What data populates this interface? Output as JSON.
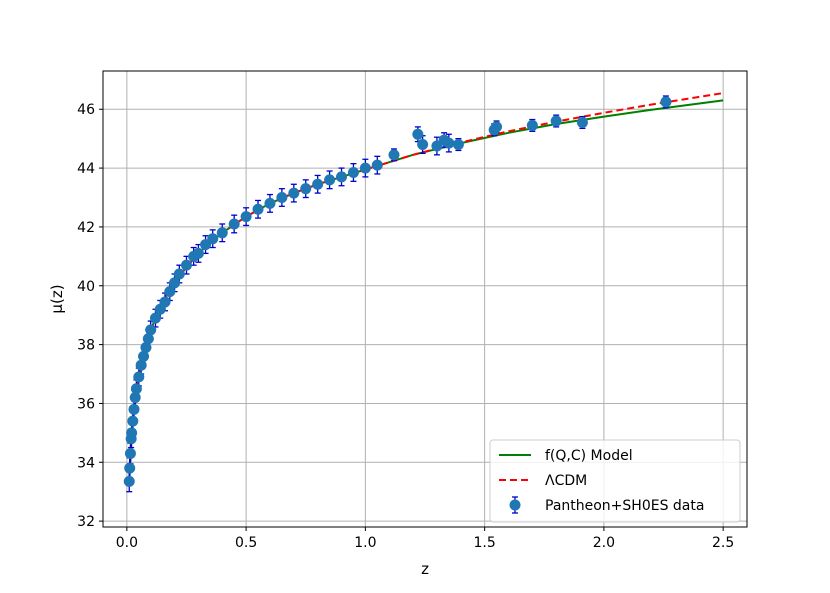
{
  "chart_data": {
    "type": "scatter",
    "title": "",
    "xlabel": "z",
    "ylabel": "μ(z)",
    "xlim": [
      -0.1,
      2.6
    ],
    "ylim": [
      31.8,
      47.3
    ],
    "x_ticks": [
      "0.0",
      "0.5",
      "1.0",
      "1.5",
      "2.0",
      "2.5"
    ],
    "y_ticks": [
      "32",
      "34",
      "36",
      "38",
      "40",
      "42",
      "44",
      "46"
    ],
    "grid": true,
    "legend_position": "lower right",
    "colors": {
      "model": "#008000",
      "lcdm": "#ff0000",
      "data_marker": "#1f77b4",
      "error_bar": "#0000cd"
    },
    "series": [
      {
        "name": "f(Q,C) Model",
        "style": "solid-line",
        "x": [
          0.01,
          0.02,
          0.03,
          0.05,
          0.07,
          0.1,
          0.15,
          0.2,
          0.3,
          0.4,
          0.5,
          0.6,
          0.7,
          0.8,
          0.9,
          1.0,
          1.2,
          1.4,
          1.6,
          1.8,
          2.0,
          2.2,
          2.5
        ],
        "y": [
          33.3,
          34.85,
          35.8,
          36.9,
          37.65,
          38.5,
          39.45,
          40.15,
          41.1,
          41.8,
          42.35,
          42.8,
          43.15,
          43.45,
          43.7,
          43.95,
          44.45,
          44.85,
          45.2,
          45.5,
          45.75,
          45.98,
          46.3
        ]
      },
      {
        "name": "ΛCDM",
        "style": "dashed-line",
        "x": [
          0.01,
          0.02,
          0.03,
          0.05,
          0.07,
          0.1,
          0.15,
          0.2,
          0.3,
          0.4,
          0.5,
          0.6,
          0.7,
          0.8,
          0.9,
          1.0,
          1.2,
          1.4,
          1.6,
          1.8,
          2.0,
          2.2,
          2.5
        ],
        "y": [
          33.3,
          34.85,
          35.8,
          36.9,
          37.65,
          38.5,
          39.45,
          40.15,
          41.1,
          41.8,
          42.35,
          42.8,
          43.15,
          43.45,
          43.7,
          43.95,
          44.45,
          44.87,
          45.25,
          45.58,
          45.88,
          46.16,
          46.55
        ]
      },
      {
        "name": "Pantheon+SH0ES data",
        "style": "errorbar-points",
        "x": [
          0.01,
          0.012,
          0.015,
          0.018,
          0.02,
          0.025,
          0.03,
          0.035,
          0.04,
          0.05,
          0.06,
          0.07,
          0.08,
          0.09,
          0.1,
          0.12,
          0.14,
          0.16,
          0.18,
          0.2,
          0.22,
          0.25,
          0.28,
          0.3,
          0.33,
          0.36,
          0.4,
          0.45,
          0.5,
          0.55,
          0.6,
          0.65,
          0.7,
          0.75,
          0.8,
          0.85,
          0.9,
          0.95,
          1.0,
          1.05,
          1.12,
          1.22,
          1.24,
          1.3,
          1.33,
          1.35,
          1.39,
          1.54,
          1.55,
          1.7,
          1.8,
          1.91,
          2.26
        ],
        "y": [
          33.35,
          33.8,
          34.3,
          34.8,
          35.0,
          35.4,
          35.8,
          36.2,
          36.5,
          36.9,
          37.3,
          37.6,
          37.9,
          38.2,
          38.5,
          38.9,
          39.2,
          39.45,
          39.8,
          40.1,
          40.4,
          40.7,
          41.0,
          41.1,
          41.4,
          41.6,
          41.8,
          42.1,
          42.35,
          42.6,
          42.8,
          43.0,
          43.15,
          43.3,
          43.45,
          43.6,
          43.7,
          43.85,
          44.0,
          44.1,
          44.45,
          45.15,
          44.8,
          44.75,
          44.95,
          44.85,
          44.8,
          45.3,
          45.4,
          45.45,
          45.6,
          45.55,
          46.25
        ],
        "yerr": [
          0.35,
          0.35,
          0.35,
          0.3,
          0.3,
          0.3,
          0.3,
          0.3,
          0.3,
          0.3,
          0.3,
          0.3,
          0.3,
          0.3,
          0.3,
          0.3,
          0.3,
          0.3,
          0.3,
          0.3,
          0.3,
          0.3,
          0.3,
          0.3,
          0.3,
          0.3,
          0.3,
          0.3,
          0.3,
          0.3,
          0.3,
          0.3,
          0.3,
          0.3,
          0.3,
          0.3,
          0.3,
          0.3,
          0.3,
          0.3,
          0.2,
          0.25,
          0.3,
          0.3,
          0.25,
          0.3,
          0.2,
          0.2,
          0.2,
          0.2,
          0.2,
          0.2,
          0.2
        ]
      }
    ]
  }
}
